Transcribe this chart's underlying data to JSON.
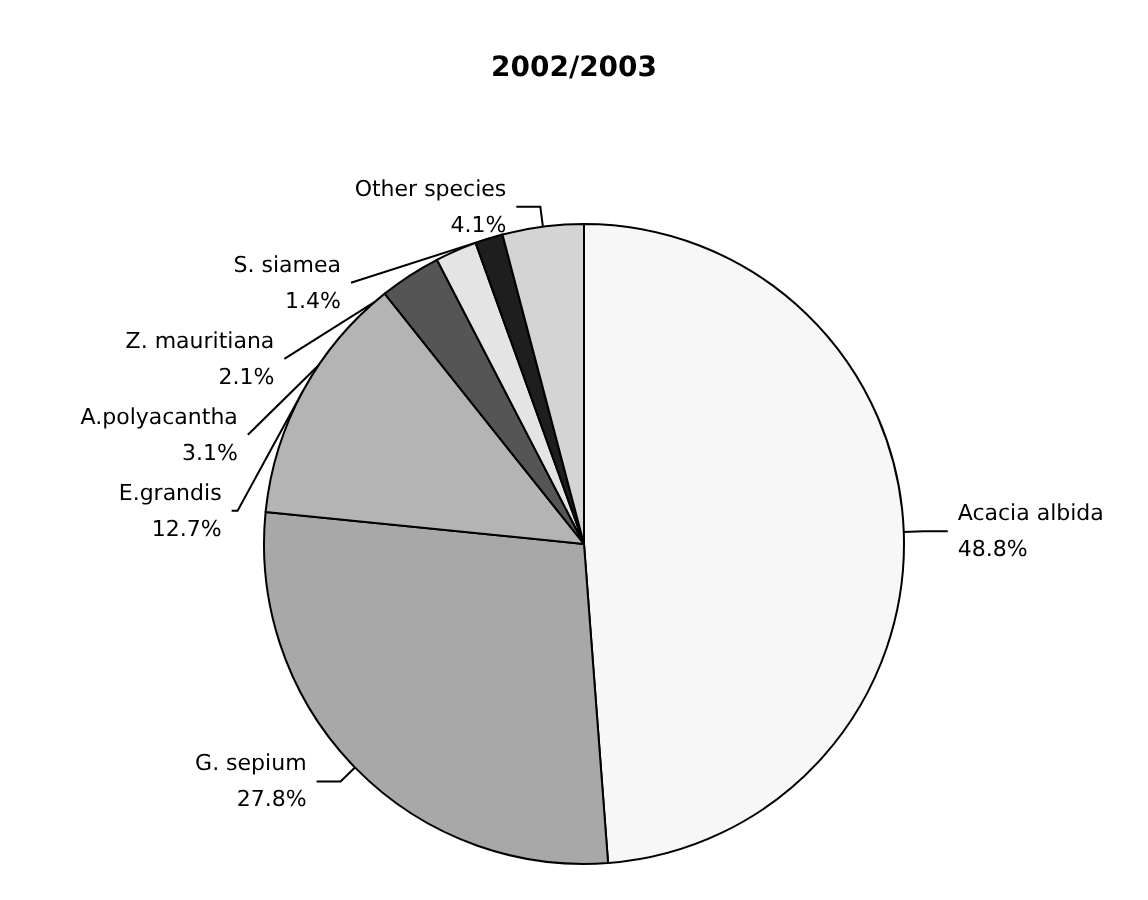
{
  "chart_data": {
    "type": "pie",
    "title": "2002/2003",
    "categories": [
      "Acacia albida",
      "G. sepium",
      "E.grandis",
      "A.polyacantha",
      "Z. mauritiana",
      "S. siamea",
      "Other species"
    ],
    "values": [
      48.8,
      27.8,
      12.7,
      3.1,
      2.1,
      1.4,
      4.1
    ],
    "colors": [
      "#f7f7f7",
      "#a8a8a8",
      "#b4b4b4",
      "#555555",
      "#e4e4e4",
      "#1e1e1e",
      "#d4d4d4"
    ],
    "value_labels": [
      "48.8%",
      "27.8%",
      "12.7%",
      "3.1%",
      "2.1%",
      "1.4%",
      "4.1%"
    ],
    "legend": false
  }
}
